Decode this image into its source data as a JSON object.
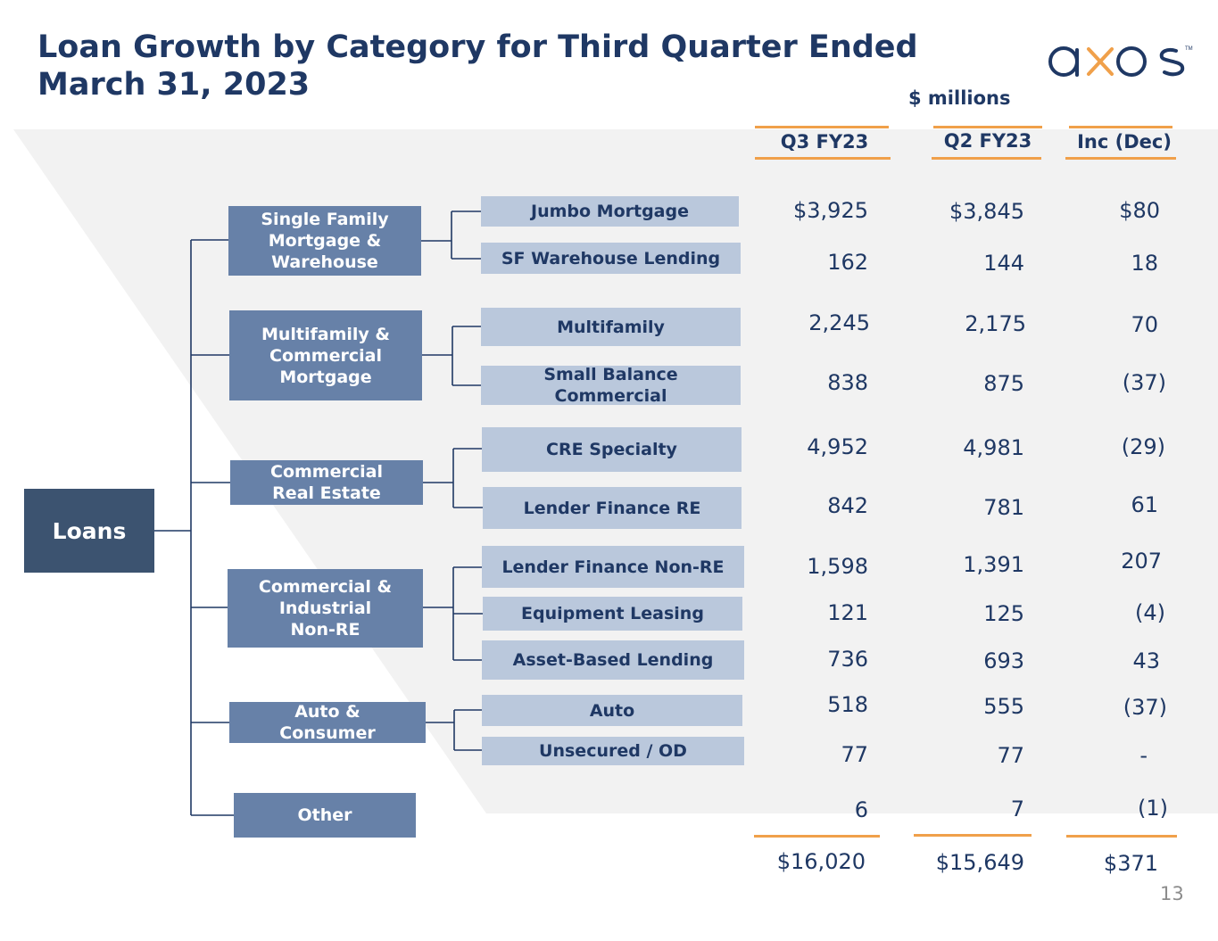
{
  "title_line1": "Loan Growth by Category for Third Quarter Ended",
  "title_line2": "March 31, 2023",
  "logo_text": "axos",
  "units": "$ millions",
  "columns": [
    "Q3 FY23",
    "Q2 FY23",
    "Inc (Dec)"
  ],
  "root": "Loans",
  "categories": [
    {
      "label": [
        "Single Family",
        "Mortgage &",
        "Warehouse"
      ]
    },
    {
      "label": [
        "Multifamily &",
        "Commercial",
        "Mortgage"
      ]
    },
    {
      "label": [
        "Commercial",
        "Real Estate"
      ]
    },
    {
      "label": [
        "Commercial &",
        "Industrial",
        "Non-RE"
      ]
    },
    {
      "label": [
        "Auto &",
        "Consumer"
      ]
    },
    {
      "label": [
        "Other"
      ]
    }
  ],
  "rows": [
    {
      "label": [
        "Jumbo Mortgage"
      ],
      "q3": "$3,925",
      "q2": "$3,845",
      "inc": "$80"
    },
    {
      "label": [
        "SF Warehouse Lending"
      ],
      "q3": "162",
      "q2": "144",
      "inc": "18"
    },
    {
      "label": [
        "Multifamily"
      ],
      "q3": "2,245",
      "q2": "2,175",
      "inc": "70"
    },
    {
      "label": [
        "Small Balance",
        "Commercial"
      ],
      "q3": "838",
      "q2": "875",
      "inc": "(37)"
    },
    {
      "label": [
        "CRE Specialty"
      ],
      "q3": "4,952",
      "q2": "4,981",
      "inc": "(29)"
    },
    {
      "label": [
        "Lender Finance RE"
      ],
      "q3": "842",
      "q2": "781",
      "inc": "61"
    },
    {
      "label": [
        "Lender Finance Non-RE"
      ],
      "q3": "1,598",
      "q2": "1,391",
      "inc": "207"
    },
    {
      "label": [
        "Equipment Leasing"
      ],
      "q3": "121",
      "q2": "125",
      "inc": "(4)"
    },
    {
      "label": [
        "Asset-Based Lending"
      ],
      "q3": "736",
      "q2": "693",
      "inc": "43"
    },
    {
      "label": [
        "Auto"
      ],
      "q3": "518",
      "q2": "555",
      "inc": "(37)"
    },
    {
      "label": [
        "Unsecured / OD"
      ],
      "q3": "77",
      "q2": "77",
      "inc": "-"
    },
    {
      "label": [],
      "q3": "6",
      "q2": "7",
      "inc": "(1)"
    }
  ],
  "totals": {
    "q3": "$16,020",
    "q2": "$15,649",
    "inc": "$371"
  },
  "page_number": "13",
  "colors": {
    "navy": "#1f3864",
    "root_box": "#3c5370",
    "category_box": "#6781a8",
    "item_box": "#bac8dc",
    "accent_orange": "#f0a04a",
    "band": "#f2f2f2"
  }
}
